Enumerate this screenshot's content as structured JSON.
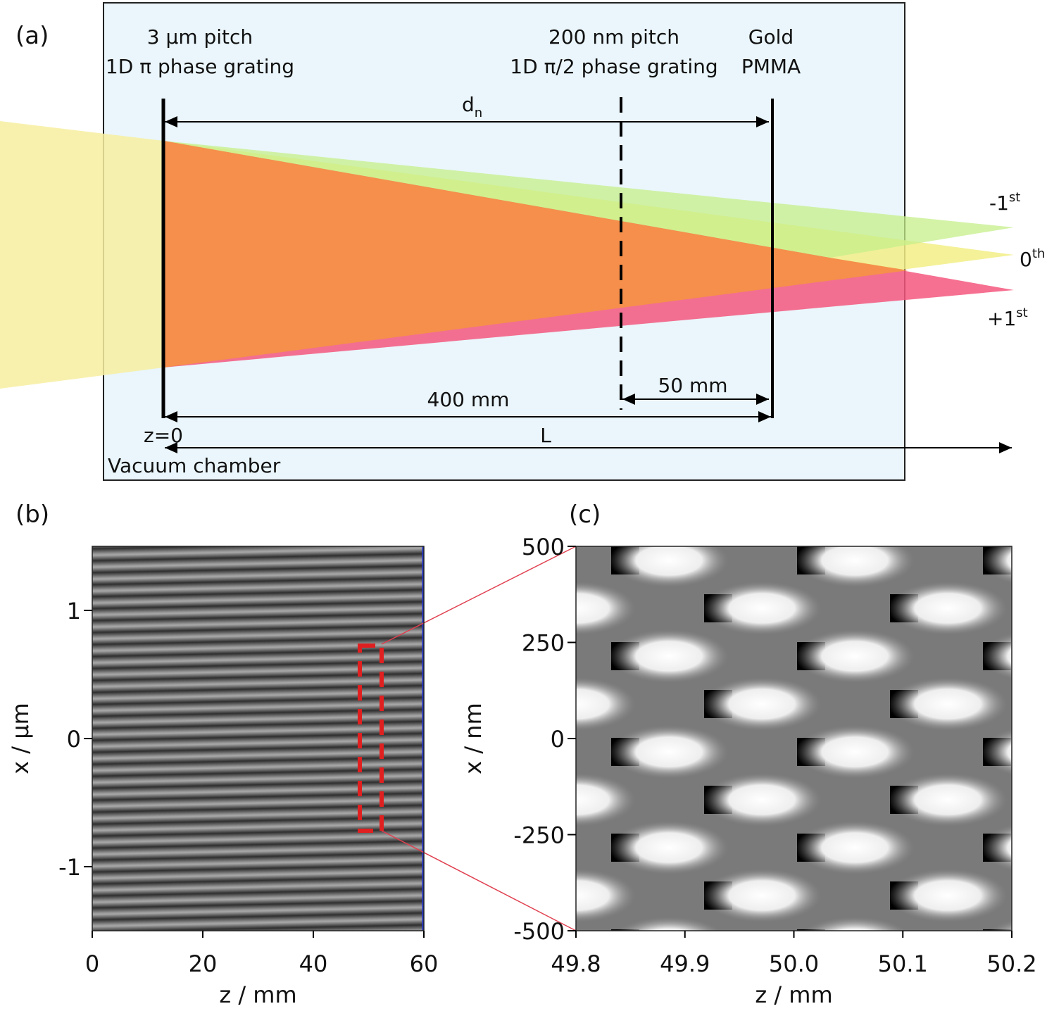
{
  "diagram": {
    "panel_label": "(a)",
    "grating1": {
      "line1": "3 μm pitch",
      "line2": "1D π phase grating"
    },
    "grating2": {
      "line1": "200 nm pitch",
      "line2": "1D π/2 phase grating"
    },
    "resist": {
      "line1": "Gold",
      "line2": "PMMA"
    },
    "dn": {
      "base": "d",
      "sub": "n"
    },
    "orders": [
      {
        "base": "-1",
        "sup": "st"
      },
      {
        "base": "0",
        "sup": "th"
      },
      {
        "base": "+1",
        "sup": "st"
      }
    ],
    "dist_400": "400 mm",
    "dist_50": "50 mm",
    "z0": "z=0",
    "L": "L",
    "chamber": "Vacuum chamber"
  },
  "chart_data": [
    {
      "type": "image",
      "panel_label": "(b)",
      "xlabel": "z / mm",
      "ylabel": "x / μm",
      "xlim": [
        0,
        60
      ],
      "ylim": [
        -1.5,
        1.5
      ],
      "xticks": [
        0,
        20,
        40,
        60
      ],
      "yticks": [
        -1,
        0,
        1
      ]
    },
    {
      "type": "image",
      "panel_label": "(c)",
      "xlabel": "z / mm",
      "ylabel": "x / nm",
      "xlim": [
        49.8,
        50.2
      ],
      "ylim": [
        -500,
        500
      ],
      "xticks": [
        49.8,
        49.9,
        {
          "value": 50.0,
          "label": "50.0"
        },
        50.1,
        50.2
      ],
      "yticks": [
        -500,
        -250,
        0,
        250,
        500
      ]
    }
  ]
}
